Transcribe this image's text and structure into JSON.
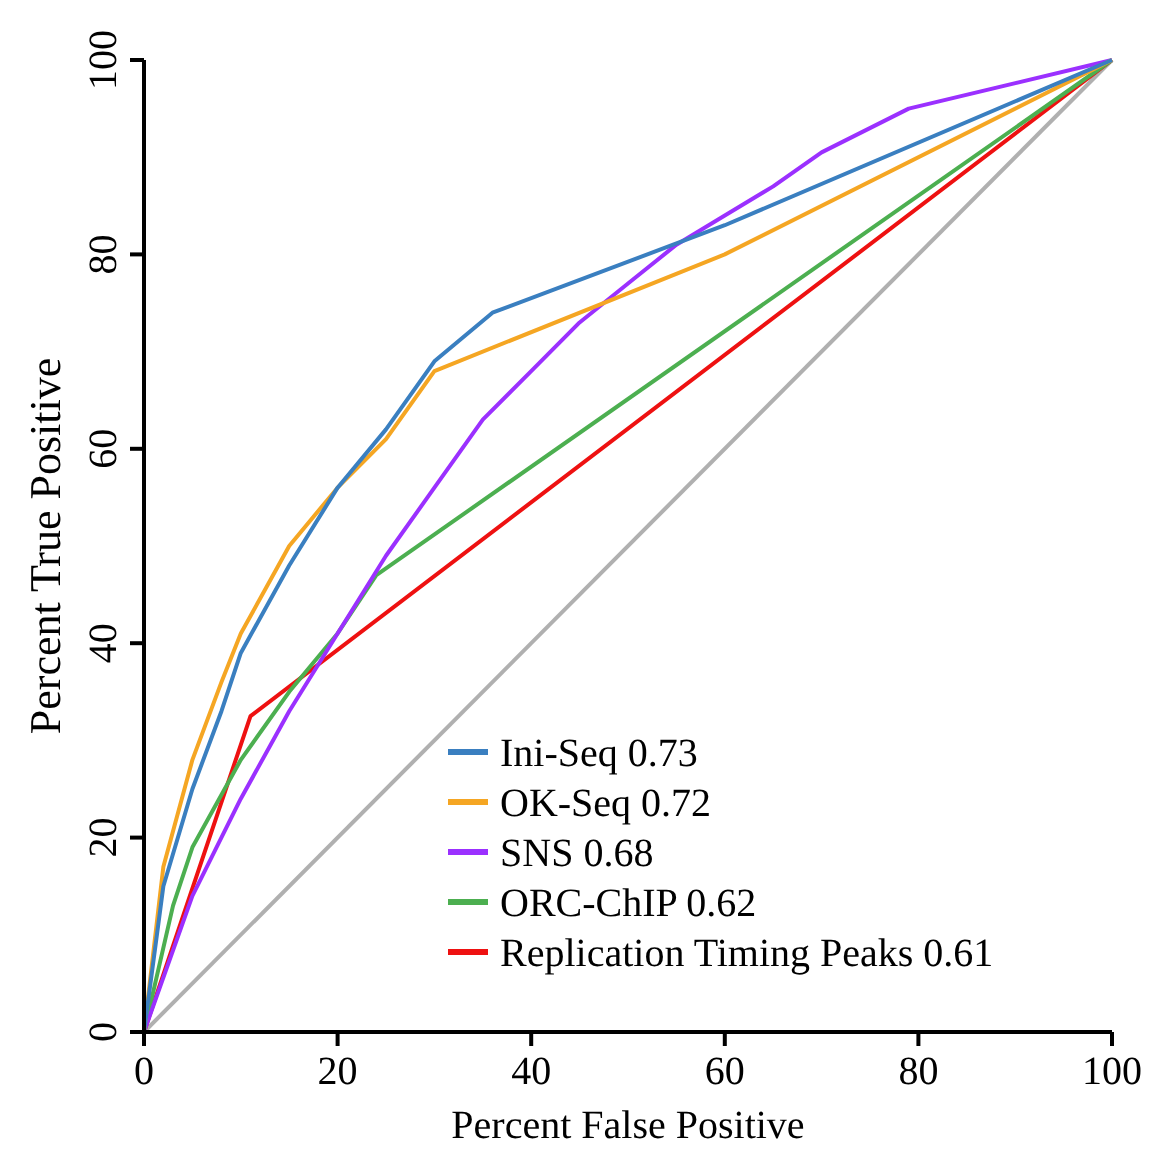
{
  "chart_data": {
    "type": "line",
    "xlabel": "Percent False Positive",
    "ylabel": "Percent True Positive",
    "xlim": [
      0,
      100
    ],
    "ylim": [
      0,
      100
    ],
    "xticks": [
      0,
      20,
      40,
      60,
      80,
      100
    ],
    "yticks": [
      0,
      20,
      40,
      60,
      80,
      100
    ],
    "grid": false,
    "legend": "bottom right",
    "marker": "none",
    "line_style": "solid",
    "series": [
      {
        "name": "Ini-Seq 0.73",
        "color": "#3a7fc0",
        "x": [
          0,
          2,
          5,
          8,
          10,
          15,
          20,
          25,
          30,
          36,
          60,
          100
        ],
        "values": [
          0,
          15,
          25,
          33,
          39,
          48,
          56,
          62,
          69,
          74,
          83,
          100
        ]
      },
      {
        "name": "OK-Seq 0.72",
        "color": "#f5a623",
        "x": [
          0,
          2,
          5,
          8,
          10,
          15,
          20,
          25,
          30,
          60,
          100
        ],
        "values": [
          0,
          17,
          28,
          36,
          41,
          50,
          56,
          61,
          68,
          80,
          100
        ]
      },
      {
        "name": "SNS 0.68",
        "color": "#9b30ff",
        "x": [
          0,
          5,
          10,
          15,
          20,
          25,
          30,
          35,
          40,
          45,
          50,
          55,
          60,
          65,
          70,
          79,
          100
        ],
        "values": [
          0,
          14,
          24,
          33,
          41,
          49,
          56,
          63,
          68,
          73,
          77,
          81,
          84,
          87,
          90.5,
          95,
          100
        ]
      },
      {
        "name": "ORC-ChIP 0.62",
        "color": "#4caf50",
        "x": [
          0,
          3,
          5,
          10,
          15,
          20,
          24,
          100
        ],
        "values": [
          0,
          13,
          19,
          28,
          35,
          41,
          47,
          100
        ]
      },
      {
        "name": "Replication Timing Peaks 0.61",
        "color": "#ee1111",
        "x": [
          0,
          11,
          100
        ],
        "values": [
          0,
          32.5,
          100
        ]
      },
      {
        "color": "#b0b0b0",
        "x": [
          0,
          100
        ],
        "values": [
          0,
          100
        ]
      }
    ]
  }
}
